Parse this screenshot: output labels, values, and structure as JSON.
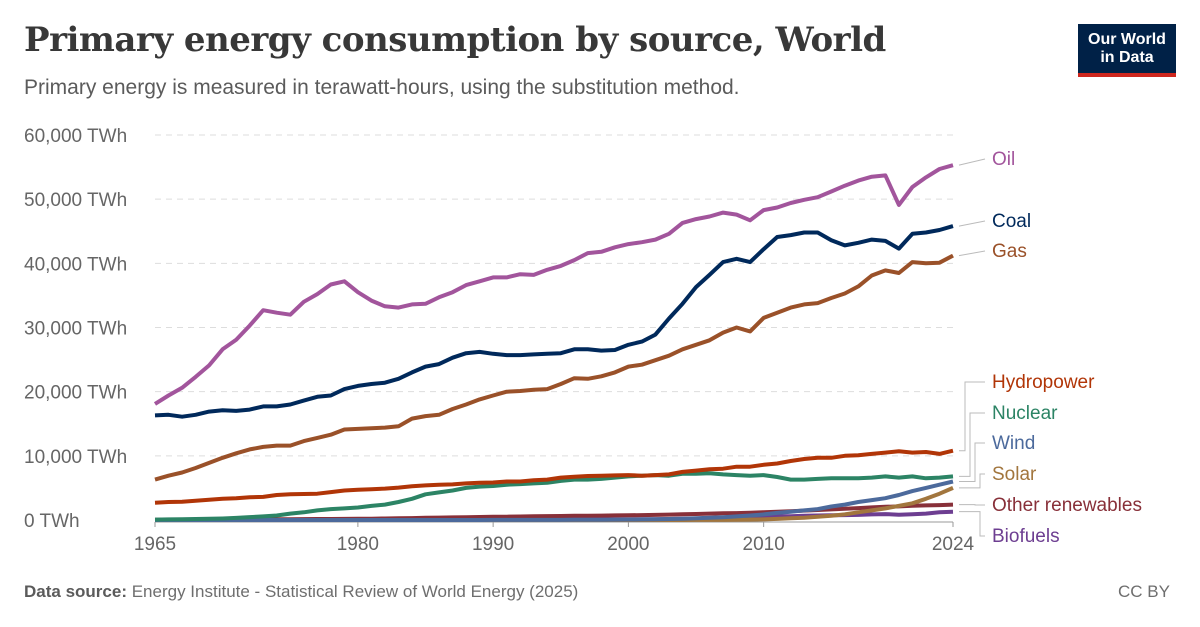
{
  "header": {
    "title": "Primary energy consumption by source, World",
    "subtitle": "Primary energy is measured in terawatt-hours, using the substitution method.",
    "logo_line1": "Our World",
    "logo_line2": "in Data"
  },
  "footer": {
    "source_label": "Data source:",
    "source_text": "Energy Institute - Statistical Review of World Energy (2025)",
    "license": "CC BY"
  },
  "chart_data": {
    "type": "line",
    "title": "Primary energy consumption by source, World",
    "xlabel": "",
    "ylabel": "",
    "x_start": 1965,
    "x_end": 2024,
    "xlim": [
      1965,
      2024
    ],
    "ylim": [
      0,
      60000
    ],
    "x_ticks": [
      "1965",
      "1980",
      "1990",
      "2000",
      "2010",
      "2024"
    ],
    "y_ticks": [
      "0 TWh",
      "10,000 TWh",
      "20,000 TWh",
      "30,000 TWh",
      "40,000 TWh",
      "50,000 TWh",
      "60,000 TWh"
    ],
    "grid": "horizontal dashed",
    "legend": "right, inline labels",
    "series": [
      {
        "name": "Oil",
        "color": "#a2559c",
        "values": [
          18100,
          19400,
          20600,
          22300,
          24100,
          26600,
          28100,
          30300,
          32700,
          32300,
          32000,
          34000,
          35200,
          36700,
          37200,
          35500,
          34200,
          33300,
          33100,
          33600,
          33700,
          34700,
          35500,
          36600,
          37200,
          37800,
          37800,
          38300,
          38200,
          39000,
          39600,
          40500,
          41600,
          41800,
          42500,
          43000,
          43300,
          43700,
          44600,
          46300,
          46900,
          47300,
          47900,
          47600,
          46700,
          48300,
          48700,
          49400,
          49900,
          50300,
          51200,
          52100,
          52900,
          53500,
          53700,
          49100,
          51900,
          53400,
          54700,
          55300
        ]
      },
      {
        "name": "Coal",
        "color": "#00295b",
        "values": [
          16300,
          16400,
          16100,
          16400,
          16900,
          17100,
          17000,
          17200,
          17700,
          17700,
          18000,
          18600,
          19200,
          19400,
          20400,
          20900,
          21200,
          21400,
          22000,
          23000,
          23900,
          24300,
          25300,
          26000,
          26200,
          25900,
          25700,
          25700,
          25800,
          25900,
          26000,
          26600,
          26600,
          26400,
          26500,
          27300,
          27800,
          28900,
          31400,
          33700,
          36300,
          38200,
          40200,
          40700,
          40200,
          42200,
          44100,
          44400,
          44800,
          44800,
          43600,
          42800,
          43200,
          43700,
          43500,
          42300,
          44600,
          44800,
          45200,
          45800
        ]
      },
      {
        "name": "Gas",
        "color": "#9a5129",
        "values": [
          6300,
          6900,
          7400,
          8100,
          8900,
          9700,
          10400,
          11000,
          11400,
          11600,
          11600,
          12300,
          12800,
          13300,
          14100,
          14200,
          14300,
          14400,
          14600,
          15800,
          16200,
          16400,
          17300,
          18000,
          18800,
          19400,
          20000,
          20100,
          20300,
          20400,
          21200,
          22100,
          22000,
          22400,
          23000,
          23900,
          24200,
          24900,
          25600,
          26600,
          27300,
          28000,
          29200,
          30000,
          29400,
          31500,
          32300,
          33100,
          33600,
          33800,
          34600,
          35300,
          36400,
          38100,
          38900,
          38500,
          40200,
          40000,
          40100,
          41200
        ]
      },
      {
        "name": "Hydropower",
        "color": "#b13507",
        "values": [
          2700,
          2800,
          2850,
          3000,
          3150,
          3300,
          3400,
          3550,
          3600,
          3900,
          4000,
          4050,
          4100,
          4350,
          4600,
          4700,
          4800,
          4900,
          5050,
          5250,
          5400,
          5500,
          5550,
          5700,
          5800,
          5850,
          6000,
          6000,
          6200,
          6300,
          6600,
          6750,
          6850,
          6900,
          6950,
          7000,
          6900,
          7000,
          7100,
          7500,
          7700,
          7900,
          8000,
          8300,
          8300,
          8600,
          8800,
          9200,
          9500,
          9700,
          9700,
          10000,
          10100,
          10300,
          10500,
          10700,
          10500,
          10600,
          10300,
          10800
        ]
      },
      {
        "name": "Nuclear",
        "color": "#2c8465",
        "values": [
          70,
          100,
          120,
          150,
          180,
          230,
          330,
          450,
          560,
          700,
          1000,
          1200,
          1500,
          1700,
          1800,
          1950,
          2200,
          2400,
          2800,
          3300,
          4000,
          4300,
          4600,
          5000,
          5200,
          5300,
          5500,
          5600,
          5700,
          5800,
          6100,
          6300,
          6300,
          6400,
          6600,
          6800,
          6900,
          7000,
          6900,
          7200,
          7200,
          7300,
          7100,
          7000,
          6900,
          7000,
          6700,
          6300,
          6300,
          6400,
          6500,
          6500,
          6500,
          6600,
          6800,
          6600,
          6800,
          6500,
          6600,
          6800
        ]
      },
      {
        "name": "Wind",
        "color": "#4c6a9c",
        "values": [
          0,
          0,
          0,
          0,
          0,
          0,
          0,
          0,
          0,
          0,
          0,
          0,
          0,
          0,
          0,
          0,
          0,
          0,
          0,
          0,
          0,
          0,
          0,
          1,
          5,
          10,
          11,
          13,
          16,
          20,
          22,
          28,
          32,
          40,
          55,
          80,
          100,
          130,
          160,
          200,
          270,
          340,
          440,
          560,
          700,
          880,
          1100,
          1280,
          1500,
          1700,
          2100,
          2400,
          2800,
          3100,
          3400,
          3900,
          4500,
          5000,
          5500,
          6000
        ]
      },
      {
        "name": "Solar",
        "color": "#a2763e",
        "values": [
          0,
          0,
          0,
          0,
          0,
          0,
          0,
          0,
          0,
          0,
          0,
          0,
          0,
          0,
          0,
          0,
          0,
          0,
          0,
          0,
          0,
          0,
          0,
          0,
          0,
          0,
          0,
          0,
          0,
          0,
          1,
          1,
          1,
          1,
          2,
          3,
          3,
          4,
          6,
          7,
          11,
          15,
          20,
          35,
          55,
          90,
          170,
          260,
          360,
          510,
          660,
          870,
          1200,
          1500,
          1800,
          2200,
          2600,
          3300,
          4100,
          5000
        ]
      },
      {
        "name": "Other renewables",
        "color": "#883039",
        "values": [
          50,
          55,
          60,
          65,
          70,
          80,
          90,
          100,
          110,
          120,
          130,
          140,
          150,
          160,
          170,
          180,
          200,
          230,
          260,
          300,
          340,
          370,
          400,
          430,
          460,
          500,
          520,
          550,
          570,
          600,
          620,
          650,
          670,
          690,
          710,
          740,
          760,
          800,
          840,
          890,
          940,
          990,
          1040,
          1080,
          1130,
          1210,
          1280,
          1370,
          1460,
          1560,
          1650,
          1750,
          1860,
          1960,
          2050,
          2120,
          2220,
          2280,
          2320,
          2400
        ]
      },
      {
        "name": "Biofuels",
        "color": "#6d3e91",
        "values": [
          0,
          0,
          0,
          0,
          0,
          0,
          0,
          0,
          0,
          0,
          0,
          0,
          5,
          10,
          20,
          30,
          40,
          50,
          60,
          65,
          70,
          80,
          90,
          90,
          90,
          90,
          90,
          90,
          100,
          100,
          100,
          110,
          110,
          110,
          110,
          110,
          120,
          130,
          160,
          180,
          220,
          270,
          340,
          450,
          510,
          570,
          580,
          590,
          650,
          700,
          740,
          770,
          800,
          870,
          920,
          830,
          910,
          1000,
          1200,
          1300
        ]
      }
    ]
  }
}
